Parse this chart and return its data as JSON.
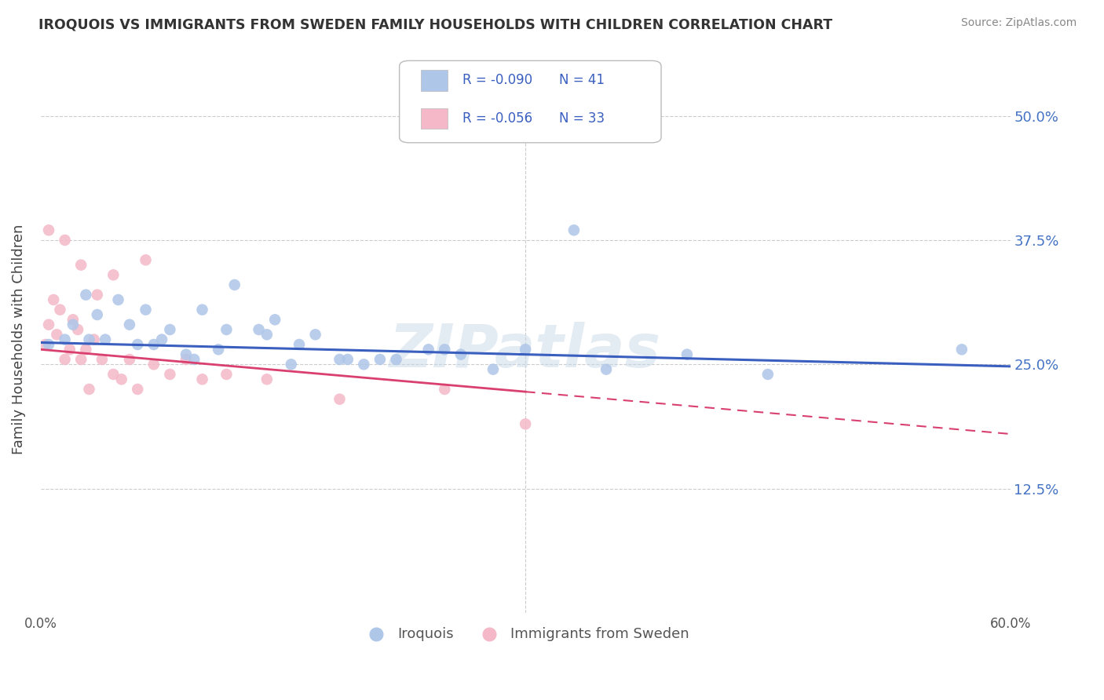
{
  "title": "IROQUOIS VS IMMIGRANTS FROM SWEDEN FAMILY HOUSEHOLDS WITH CHILDREN CORRELATION CHART",
  "source": "Source: ZipAtlas.com",
  "ylabel": "Family Households with Children",
  "ytick_labels": [
    "12.5%",
    "25.0%",
    "37.5%",
    "50.0%"
  ],
  "ytick_values": [
    12.5,
    25.0,
    37.5,
    50.0
  ],
  "xlim": [
    0,
    60
  ],
  "ylim": [
    0,
    55
  ],
  "legend_iroquois": "Iroquois",
  "legend_immigrants": "Immigrants from Sweden",
  "r_iroquois": -0.09,
  "n_iroquois": 41,
  "r_immigrants": -0.056,
  "n_immigrants": 33,
  "iroquois_color": "#aec6e8",
  "immigrants_color": "#f4b8c8",
  "iroquois_line_color": "#3a5fbf",
  "immigrants_line_color": "#d94070",
  "watermark": "ZIPatlas",
  "iroquois_x": [
    0.5,
    1.5,
    2.0,
    2.8,
    3.5,
    4.0,
    4.8,
    5.5,
    6.5,
    7.0,
    8.0,
    9.0,
    10.0,
    11.0,
    12.0,
    13.5,
    14.5,
    15.5,
    17.0,
    18.5,
    20.0,
    22.0,
    24.0,
    26.0,
    30.0,
    35.0,
    40.0,
    57.0,
    3.0,
    6.0,
    7.5,
    9.5,
    11.5,
    14.0,
    16.0,
    19.0,
    21.0,
    25.0,
    28.0,
    45.0,
    33.0
  ],
  "iroquois_y": [
    27.0,
    27.5,
    29.0,
    32.0,
    30.0,
    27.5,
    31.5,
    29.0,
    30.5,
    27.0,
    28.5,
    26.0,
    30.5,
    26.5,
    33.0,
    28.5,
    29.5,
    25.0,
    28.0,
    25.5,
    25.0,
    25.5,
    26.5,
    26.0,
    26.5,
    24.5,
    26.0,
    26.5,
    27.5,
    27.0,
    27.5,
    25.5,
    28.5,
    28.0,
    27.0,
    25.5,
    25.5,
    26.5,
    24.5,
    24.0,
    38.5
  ],
  "immigrants_x": [
    0.3,
    0.5,
    0.8,
    1.0,
    1.2,
    1.5,
    1.8,
    2.0,
    2.3,
    2.5,
    2.8,
    3.0,
    3.3,
    3.8,
    4.5,
    5.0,
    5.5,
    6.0,
    7.0,
    8.0,
    9.0,
    10.0,
    11.5,
    14.0,
    18.5,
    25.0,
    30.0,
    0.5,
    1.5,
    2.5,
    3.5,
    4.5,
    6.5
  ],
  "immigrants_y": [
    27.0,
    29.0,
    31.5,
    28.0,
    30.5,
    25.5,
    26.5,
    29.5,
    28.5,
    25.5,
    26.5,
    22.5,
    27.5,
    25.5,
    24.0,
    23.5,
    25.5,
    22.5,
    25.0,
    24.0,
    25.5,
    23.5,
    24.0,
    23.5,
    21.5,
    22.5,
    19.0,
    38.5,
    37.5,
    35.0,
    32.0,
    34.0,
    35.5
  ],
  "iroquois_line_start_y": 27.2,
  "iroquois_line_end_y": 24.8,
  "immigrants_line_start_y": 26.5,
  "immigrants_line_end_y": 18.0,
  "immigrants_line_solid_end_x": 30.0,
  "background_color": "#ffffff",
  "grid_color": "#cccccc"
}
